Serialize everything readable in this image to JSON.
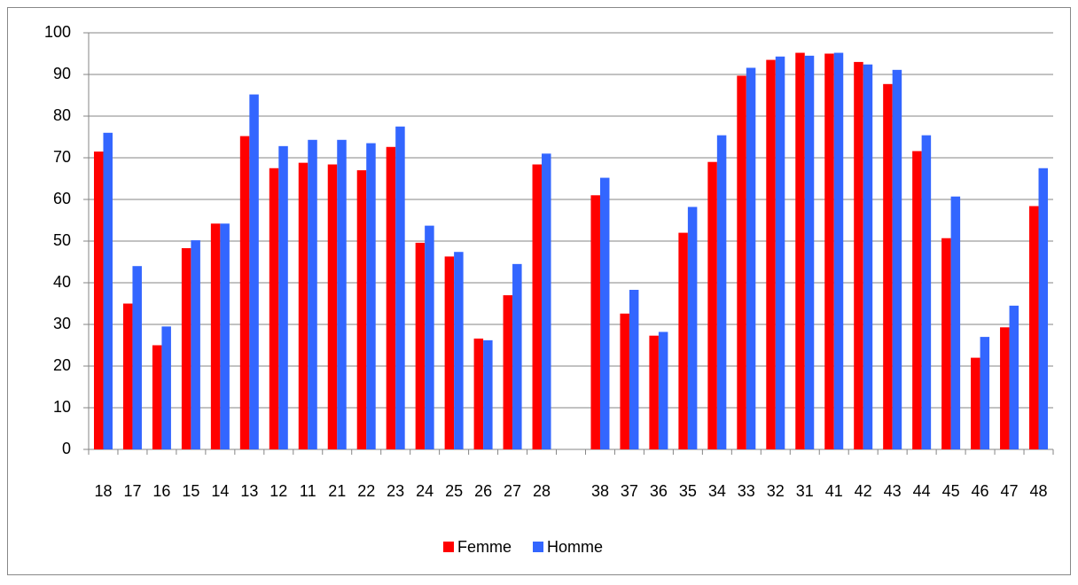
{
  "chart_data": {
    "type": "bar",
    "categories": [
      "18",
      "17",
      "16",
      "15",
      "14",
      "13",
      "12",
      "11",
      "21",
      "22",
      "23",
      "24",
      "25",
      "26",
      "27",
      "28",
      null,
      "38",
      "37",
      "36",
      "35",
      "34",
      "33",
      "32",
      "31",
      "41",
      "42",
      "43",
      "44",
      "45",
      "46",
      "47",
      "48"
    ],
    "series": [
      {
        "name": "Femme",
        "color": "#ff0000",
        "values": [
          71.5,
          35,
          25,
          48.3,
          54.2,
          75.2,
          67.5,
          68.8,
          68.4,
          67,
          72.6,
          49.6,
          46.3,
          26.6,
          37,
          68.4,
          null,
          61,
          32.6,
          27.3,
          52,
          69,
          89.7,
          93.5,
          95.2,
          95,
          93,
          87.7,
          71.6,
          50.7,
          22,
          29.3,
          58.4
        ]
      },
      {
        "name": "Homme",
        "color": "#3366ff",
        "values": [
          76,
          44,
          29.5,
          50.2,
          54.2,
          85.2,
          72.8,
          74.3,
          74.3,
          73.5,
          77.5,
          53.7,
          47.4,
          26.2,
          44.5,
          71,
          null,
          65.2,
          38.3,
          28.2,
          58.2,
          75.4,
          91.6,
          94.3,
          94.5,
          95.2,
          92.4,
          91.1,
          75.4,
          60.7,
          27,
          34.5,
          67.5
        ]
      }
    ],
    "ylim": [
      0,
      100
    ],
    "yticks": [
      0,
      10,
      20,
      30,
      40,
      50,
      60,
      70,
      80,
      90,
      100
    ],
    "grid": true,
    "legend": "bottom"
  }
}
